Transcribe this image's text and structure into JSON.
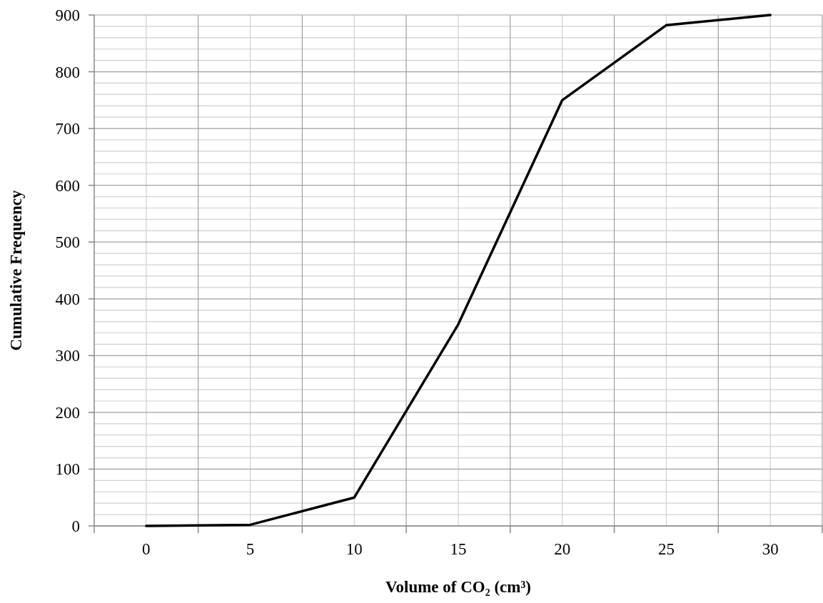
{
  "chart_data": {
    "type": "line",
    "xlabel": "Volume of CO₂ (cm³)",
    "ylabel": "Cumulative Frequency",
    "categories": [
      "0",
      "5",
      "10",
      "15",
      "20",
      "25",
      "30"
    ],
    "series": [
      {
        "color": "#000000",
        "values": [
          0,
          2,
          50,
          355,
          750,
          882,
          900
        ]
      }
    ],
    "ylim": [
      0,
      900
    ],
    "yticks": [
      0,
      100,
      200,
      300,
      400,
      500,
      600,
      700,
      800,
      900
    ],
    "grid": true,
    "marker": "none",
    "line_style": "solid"
  }
}
